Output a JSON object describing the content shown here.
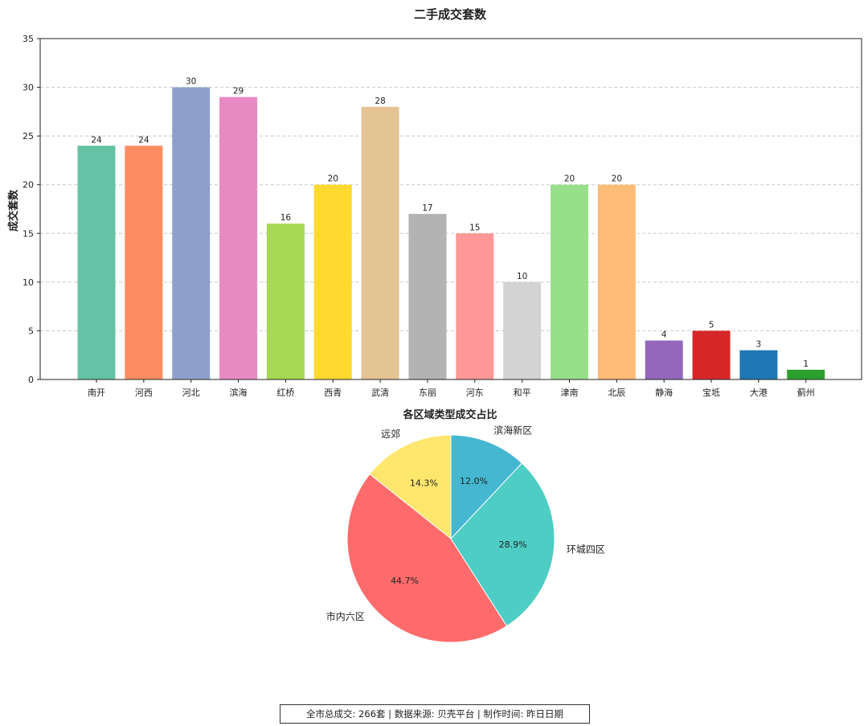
{
  "chart_data": [
    {
      "type": "bar",
      "title": "二手成交套数",
      "xlabel": "",
      "ylabel": "成交套数",
      "ylim": [
        0,
        35
      ],
      "yticks": [
        0,
        5,
        10,
        15,
        20,
        25,
        30,
        35
      ],
      "grid": "y-dashed",
      "categories": [
        "南开",
        "河西",
        "河北",
        "滨海",
        "红桥",
        "西青",
        "武清",
        "东丽",
        "河东",
        "和平",
        "津南",
        "北辰",
        "静海",
        "宝坻",
        "大港",
        "蓟州"
      ],
      "values": [
        24,
        24,
        30,
        29,
        16,
        20,
        28,
        17,
        15,
        10,
        20,
        20,
        4,
        5,
        3,
        1
      ],
      "data_labels": [
        "24",
        "24",
        "30",
        "29",
        "16",
        "20",
        "28",
        "17",
        "15",
        "10",
        "20",
        "20",
        "4",
        "5",
        "3",
        "1"
      ],
      "colors": [
        "#66c2a5",
        "#fc8d62",
        "#8da0cb",
        "#e78ac3",
        "#a6d854",
        "#ffd92f",
        "#e5c494",
        "#b3b3b3",
        "#ff9896",
        "#d3d3d3",
        "#98df8a",
        "#ffbb78",
        "#9467bd",
        "#d62728",
        "#1f77b4",
        "#2ca02c"
      ]
    },
    {
      "type": "pie",
      "title": "各区域类型成交占比",
      "labels": [
        "远郊",
        "市内六区",
        "环城四区",
        "滨海新区"
      ],
      "values": [
        14.3,
        44.7,
        28.9,
        12.0
      ],
      "pct_labels": [
        "14.3%",
        "44.7%",
        "28.9%",
        "12.0%"
      ],
      "colors": [
        "#ffe66d",
        "#ff6b6b",
        "#4ecdc4",
        "#45b7d1"
      ],
      "start_angle": 90,
      "direction": "counterclockwise"
    }
  ],
  "footer": {
    "text": "全市总成交: 266套 | 数据来源: 贝壳平台 | 制作时间: 昨日日期"
  }
}
